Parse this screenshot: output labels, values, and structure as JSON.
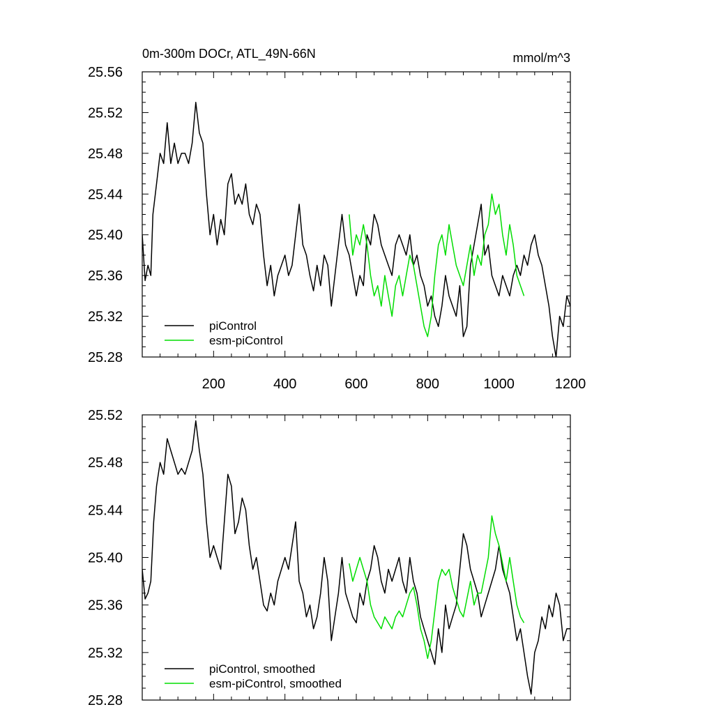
{
  "chart_data": [
    {
      "type": "line",
      "title": "0m-300m DOCr, ATL_49N-66N",
      "units": "mmol/m^3",
      "xlim": [
        0,
        1200
      ],
      "ylim": [
        25.28,
        25.56
      ],
      "x_ticks": [
        200,
        400,
        600,
        800,
        1000,
        1200
      ],
      "x_tick_labels": [
        "200",
        "400",
        "600",
        "800",
        "1000",
        "1200"
      ],
      "y_ticks": [
        25.28,
        25.32,
        25.36,
        25.4,
        25.44,
        25.48,
        25.52,
        25.56
      ],
      "y_tick_labels": [
        "25.28",
        "25.32",
        "25.36",
        "25.40",
        "25.44",
        "25.48",
        "25.52",
        "25.56"
      ],
      "legend_position": "bottom-left",
      "series": [
        {
          "name": "piControl",
          "color": "#000000",
          "x": [
            0,
            8,
            16,
            24,
            30,
            40,
            50,
            60,
            70,
            80,
            90,
            100,
            110,
            120,
            130,
            140,
            150,
            160,
            170,
            180,
            190,
            200,
            210,
            220,
            230,
            240,
            250,
            260,
            270,
            280,
            290,
            300,
            310,
            320,
            330,
            340,
            350,
            360,
            370,
            380,
            390,
            400,
            410,
            420,
            430,
            440,
            450,
            460,
            470,
            480,
            490,
            500,
            510,
            520,
            530,
            540,
            550,
            560,
            570,
            580,
            590,
            600,
            610,
            620,
            630,
            640,
            650,
            660,
            670,
            680,
            690,
            700,
            710,
            720,
            730,
            740,
            750,
            760,
            770,
            780,
            790,
            800,
            810,
            820,
            830,
            840,
            850,
            860,
            870,
            880,
            890,
            900,
            910,
            920,
            930,
            940,
            950,
            960,
            970,
            980,
            990,
            1000,
            1010,
            1020,
            1030,
            1040,
            1050,
            1060,
            1070,
            1080,
            1090,
            1100,
            1110,
            1120,
            1130,
            1140,
            1150,
            1160,
            1170,
            1180,
            1190,
            1200
          ],
          "y": [
            25.4,
            25.355,
            25.37,
            25.36,
            25.42,
            25.45,
            25.48,
            25.47,
            25.51,
            25.47,
            25.49,
            25.47,
            25.48,
            25.48,
            25.47,
            25.49,
            25.53,
            25.5,
            25.49,
            25.44,
            25.4,
            25.42,
            25.39,
            25.415,
            25.4,
            25.45,
            25.46,
            25.43,
            25.44,
            25.43,
            25.45,
            25.42,
            25.41,
            25.43,
            25.42,
            25.38,
            25.35,
            25.37,
            25.34,
            25.36,
            25.37,
            25.38,
            25.36,
            25.37,
            25.4,
            25.43,
            25.39,
            25.38,
            25.36,
            25.345,
            25.37,
            25.35,
            25.38,
            25.37,
            25.33,
            25.36,
            25.39,
            25.42,
            25.39,
            25.38,
            25.36,
            25.34,
            25.36,
            25.35,
            25.4,
            25.39,
            25.42,
            25.41,
            25.39,
            25.38,
            25.37,
            25.36,
            25.39,
            25.4,
            25.39,
            25.38,
            25.4,
            25.37,
            25.38,
            25.36,
            25.35,
            25.33,
            25.34,
            25.32,
            25.31,
            25.33,
            25.36,
            25.34,
            25.33,
            25.32,
            25.35,
            25.3,
            25.31,
            25.37,
            25.39,
            25.41,
            25.43,
            25.38,
            25.39,
            25.36,
            25.35,
            25.34,
            25.36,
            25.35,
            25.34,
            25.36,
            25.37,
            25.36,
            25.38,
            25.37,
            25.39,
            25.4,
            25.38,
            25.37,
            25.35,
            25.33,
            25.3,
            25.28,
            25.32,
            25.31,
            25.34,
            25.33
          ]
        },
        {
          "name": "esm-piControl",
          "color": "#00dd00",
          "x": [
            580,
            590,
            600,
            610,
            620,
            630,
            640,
            650,
            660,
            670,
            680,
            690,
            700,
            710,
            720,
            730,
            740,
            750,
            760,
            770,
            780,
            790,
            800,
            810,
            820,
            830,
            840,
            850,
            860,
            870,
            880,
            890,
            900,
            910,
            920,
            930,
            940,
            950,
            960,
            970,
            980,
            990,
            1000,
            1010,
            1020,
            1030,
            1040,
            1050,
            1060,
            1070
          ],
          "y": [
            25.42,
            25.38,
            25.4,
            25.39,
            25.41,
            25.39,
            25.36,
            25.34,
            25.35,
            25.33,
            25.36,
            25.34,
            25.32,
            25.35,
            25.36,
            25.34,
            25.36,
            25.38,
            25.37,
            25.35,
            25.33,
            25.31,
            25.3,
            25.32,
            25.36,
            25.39,
            25.4,
            25.38,
            25.41,
            25.39,
            25.37,
            25.36,
            25.35,
            25.37,
            25.39,
            25.36,
            25.38,
            25.37,
            25.4,
            25.41,
            25.44,
            25.42,
            25.43,
            25.4,
            25.38,
            25.41,
            25.39,
            25.36,
            25.35,
            25.34
          ]
        }
      ]
    },
    {
      "type": "line",
      "xlim": [
        0,
        1200
      ],
      "ylim": [
        25.28,
        25.52
      ],
      "x_ticks": [
        200,
        400,
        600,
        800,
        1000,
        1200
      ],
      "y_ticks": [
        25.28,
        25.32,
        25.36,
        25.4,
        25.44,
        25.48,
        25.52
      ],
      "y_tick_labels": [
        "25.28",
        "25.32",
        "25.36",
        "25.40",
        "25.44",
        "25.48",
        "25.52"
      ],
      "legend_position": "bottom-left",
      "series": [
        {
          "name": "piControl, smoothed",
          "color": "#000000",
          "x": [
            0,
            8,
            16,
            24,
            32,
            40,
            50,
            60,
            70,
            80,
            90,
            100,
            110,
            120,
            130,
            140,
            150,
            160,
            170,
            180,
            190,
            200,
            210,
            220,
            230,
            240,
            250,
            260,
            270,
            280,
            290,
            300,
            310,
            320,
            330,
            340,
            350,
            360,
            370,
            380,
            390,
            400,
            410,
            420,
            430,
            440,
            450,
            460,
            470,
            480,
            490,
            500,
            510,
            520,
            530,
            540,
            550,
            560,
            570,
            580,
            590,
            600,
            610,
            620,
            630,
            640,
            650,
            660,
            670,
            680,
            690,
            700,
            710,
            720,
            730,
            740,
            750,
            760,
            770,
            780,
            790,
            800,
            810,
            820,
            830,
            840,
            850,
            860,
            870,
            880,
            890,
            900,
            910,
            920,
            930,
            940,
            950,
            960,
            970,
            980,
            990,
            1000,
            1010,
            1020,
            1030,
            1040,
            1050,
            1060,
            1070,
            1080,
            1090,
            1100,
            1110,
            1120,
            1130,
            1140,
            1150,
            1160,
            1170,
            1180,
            1190,
            1200
          ],
          "y": [
            25.39,
            25.365,
            25.37,
            25.38,
            25.43,
            25.46,
            25.48,
            25.47,
            25.5,
            25.49,
            25.48,
            25.47,
            25.475,
            25.47,
            25.48,
            25.49,
            25.515,
            25.49,
            25.47,
            25.43,
            25.4,
            25.41,
            25.4,
            25.39,
            25.43,
            25.47,
            25.46,
            25.42,
            25.43,
            25.45,
            25.44,
            25.41,
            25.39,
            25.4,
            25.38,
            25.36,
            25.355,
            25.37,
            25.36,
            25.38,
            25.39,
            25.4,
            25.39,
            25.41,
            25.43,
            25.38,
            25.37,
            25.35,
            25.36,
            25.34,
            25.35,
            25.37,
            25.4,
            25.38,
            25.33,
            25.35,
            25.37,
            25.4,
            25.37,
            25.36,
            25.35,
            25.345,
            25.37,
            25.36,
            25.38,
            25.39,
            25.41,
            25.4,
            25.38,
            25.37,
            25.39,
            25.38,
            25.39,
            25.4,
            25.38,
            25.37,
            25.4,
            25.38,
            25.37,
            25.35,
            25.34,
            25.33,
            25.32,
            25.31,
            25.34,
            25.32,
            25.36,
            25.34,
            25.35,
            25.36,
            25.39,
            25.42,
            25.41,
            25.39,
            25.38,
            25.37,
            25.35,
            25.36,
            25.37,
            25.38,
            25.39,
            25.41,
            25.39,
            25.38,
            25.37,
            25.35,
            25.33,
            25.34,
            25.32,
            25.3,
            25.285,
            25.32,
            25.33,
            25.35,
            25.34,
            25.36,
            25.35,
            25.37,
            25.36,
            25.33,
            25.34,
            25.34
          ]
        },
        {
          "name": "esm-piControl, smoothed",
          "color": "#00dd00",
          "x": [
            580,
            590,
            600,
            610,
            620,
            630,
            640,
            650,
            660,
            670,
            680,
            690,
            700,
            710,
            720,
            730,
            740,
            750,
            760,
            770,
            780,
            790,
            800,
            810,
            820,
            830,
            840,
            850,
            860,
            870,
            880,
            890,
            900,
            910,
            920,
            930,
            940,
            950,
            960,
            970,
            980,
            990,
            1000,
            1010,
            1020,
            1030,
            1040,
            1050,
            1060,
            1070
          ],
          "y": [
            25.395,
            25.38,
            25.39,
            25.4,
            25.39,
            25.38,
            25.36,
            25.35,
            25.345,
            25.34,
            25.35,
            25.345,
            25.34,
            25.35,
            25.355,
            25.35,
            25.36,
            25.37,
            25.375,
            25.36,
            25.34,
            25.33,
            25.315,
            25.33,
            25.355,
            25.38,
            25.39,
            25.385,
            25.39,
            25.375,
            25.365,
            25.355,
            25.35,
            25.365,
            25.38,
            25.36,
            25.37,
            25.37,
            25.385,
            25.4,
            25.435,
            25.42,
            25.41,
            25.395,
            25.38,
            25.4,
            25.38,
            25.36,
            25.35,
            25.345
          ]
        }
      ]
    }
  ]
}
